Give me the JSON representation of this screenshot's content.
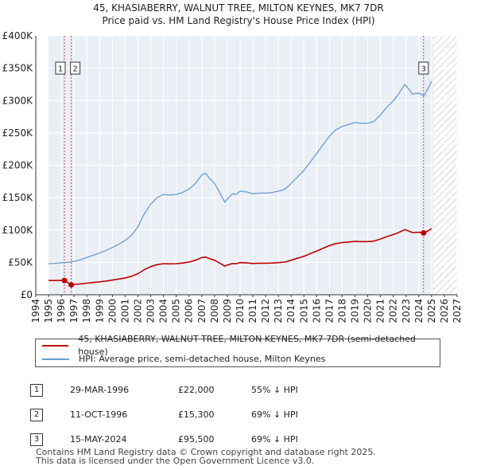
{
  "header": {
    "title_line1": "45, KHASIABERRY, WALNUT TREE, MILTON KEYNES, MK7 7DR",
    "title_line2": "Price paid vs. HM Land Registry's House Price Index (HPI)"
  },
  "legend": {
    "property_label": "45, KHASIABERRY, WALNUT TREE, MILTON KEYNES, MK7 7DR (semi-detached house)",
    "hpi_label": "HPI: Average price, semi-detached house, Milton Keynes"
  },
  "transactions": [
    {
      "num": "1",
      "date": "29-MAR-1996",
      "price": "£22,000",
      "diff": "55% ↓ HPI"
    },
    {
      "num": "2",
      "date": "11-OCT-1996",
      "price": "£15,300",
      "diff": "69% ↓ HPI"
    },
    {
      "num": "3",
      "date": "15-MAY-2024",
      "price": "£95,500",
      "diff": "69% ↓ HPI"
    }
  ],
  "footer": {
    "line1": "Contains HM Land Registry data © Crown copyright and database right 2025.",
    "line2": "This data is licensed under the Open Government Licence v3.0."
  },
  "chart_data": {
    "type": "line",
    "title": "45, KHASIABERRY, WALNUT TREE, MILTON KEYNES, MK7 7DR",
    "subtitle": "Price paid vs. HM Land Registry's House Price Index (HPI)",
    "xlabel": "",
    "ylabel": "",
    "xlim": [
      1994,
      2027
    ],
    "ylim": [
      0,
      400000
    ],
    "x_ticks": [
      1994,
      1995,
      1996,
      1997,
      1998,
      1999,
      2000,
      2001,
      2002,
      2003,
      2004,
      2005,
      2006,
      2007,
      2008,
      2009,
      2010,
      2011,
      2012,
      2013,
      2014,
      2015,
      2016,
      2017,
      2018,
      2019,
      2020,
      2021,
      2022,
      2023,
      2024,
      2025,
      2026,
      2027
    ],
    "y_ticks": [
      {
        "value": 0,
        "label": "£0"
      },
      {
        "value": 50000,
        "label": "£50K"
      },
      {
        "value": 100000,
        "label": "£100K"
      },
      {
        "value": 150000,
        "label": "£150K"
      },
      {
        "value": 200000,
        "label": "£200K"
      },
      {
        "value": 250000,
        "label": "£250K"
      },
      {
        "value": 300000,
        "label": "£300K"
      },
      {
        "value": 350000,
        "label": "£350K"
      },
      {
        "value": 400000,
        "label": "£400K"
      }
    ],
    "data_range": [
      1995.0,
      2025.15
    ],
    "shaded_before": 1995.0,
    "hatched_after": 2025.15,
    "series": [
      {
        "name": "HPI: Average price, semi-detached house, Milton Keynes",
        "color": "#6a9bd1",
        "x": [
          1995.0,
          1995.5,
          1996.0,
          1996.5,
          1997.0,
          1997.5,
          1998.0,
          1998.5,
          1999.0,
          1999.5,
          2000.0,
          2000.5,
          2001.0,
          2001.5,
          2002.0,
          2002.5,
          2003.0,
          2003.5,
          2004.0,
          2004.5,
          2005.0,
          2005.5,
          2006.0,
          2006.5,
          2007.0,
          2007.3,
          2007.6,
          2008.0,
          2008.4,
          2008.8,
          2009.1,
          2009.4,
          2009.7,
          2010.0,
          2010.5,
          2011.0,
          2011.5,
          2012.0,
          2012.5,
          2013.0,
          2013.5,
          2014.0,
          2014.5,
          2015.0,
          2015.5,
          2016.0,
          2016.5,
          2017.0,
          2017.5,
          2018.0,
          2018.5,
          2019.0,
          2019.5,
          2020.0,
          2020.5,
          2021.0,
          2021.5,
          2022.0,
          2022.3,
          2022.6,
          2022.9,
          2023.2,
          2023.5,
          2023.8,
          2024.1,
          2024.4,
          2024.7,
          2025.0
        ],
        "values": [
          48000,
          48500,
          49500,
          50000,
          51500,
          54000,
          57500,
          61000,
          64500,
          68500,
          73000,
          78000,
          84000,
          92000,
          105000,
          125000,
          140000,
          150000,
          155000,
          154000,
          155000,
          158000,
          163000,
          172000,
          185000,
          188000,
          180000,
          172000,
          158000,
          143000,
          150000,
          156000,
          155000,
          160000,
          159000,
          156000,
          157000,
          157000,
          158000,
          160000,
          163000,
          172000,
          182000,
          192000,
          205000,
          218000,
          232000,
          245000,
          255000,
          260000,
          263000,
          266000,
          265000,
          265000,
          268000,
          278000,
          290000,
          300000,
          307000,
          316000,
          325000,
          318000,
          310000,
          311000,
          311000,
          307000,
          318000,
          330000
        ]
      },
      {
        "name": "45, KHASIABERRY, WALNUT TREE, MILTON KEYNES, MK7 7DR (semi-detached house)",
        "color": "#c00000",
        "x": [
          1995.0,
          1995.5,
          1996.24,
          1996.78,
          1997.0,
          1997.5,
          1998.0,
          1998.5,
          1999.0,
          1999.5,
          2000.0,
          2000.5,
          2001.0,
          2001.5,
          2002.0,
          2002.5,
          2003.0,
          2003.5,
          2004.0,
          2004.5,
          2005.0,
          2005.5,
          2006.0,
          2006.5,
          2007.0,
          2007.3,
          2007.6,
          2008.0,
          2008.4,
          2008.8,
          2009.1,
          2009.4,
          2009.7,
          2010.0,
          2010.5,
          2011.0,
          2011.5,
          2012.0,
          2012.5,
          2013.0,
          2013.5,
          2014.0,
          2014.5,
          2015.0,
          2015.5,
          2016.0,
          2016.5,
          2017.0,
          2017.5,
          2018.0,
          2018.5,
          2019.0,
          2019.5,
          2020.0,
          2020.5,
          2021.0,
          2021.5,
          2022.0,
          2022.3,
          2022.6,
          2022.9,
          2023.2,
          2023.5,
          2023.8,
          2024.1,
          2024.37,
          2024.7,
          2025.0
        ],
        "values": [
          22000,
          22000,
          22000,
          15300,
          16000,
          16800,
          17800,
          18900,
          20000,
          21200,
          22600,
          24200,
          26000,
          28500,
          32600,
          38800,
          43400,
          46500,
          48000,
          47700,
          48000,
          49000,
          50500,
          53300,
          57300,
          58300,
          55800,
          53300,
          49000,
          44300,
          46500,
          48300,
          48000,
          49600,
          49300,
          48300,
          48700,
          48700,
          49000,
          49600,
          50500,
          53300,
          56400,
          59500,
          63500,
          67600,
          71900,
          75900,
          79000,
          80600,
          81500,
          82400,
          82100,
          82100,
          83000,
          86100,
          89900,
          93000,
          95100,
          97900,
          100700,
          98500,
          96000,
          96400,
          96400,
          95500,
          98500,
          102300
        ]
      }
    ],
    "transactions": [
      {
        "label": "1",
        "x": 1996.24,
        "value": 22000
      },
      {
        "label": "2",
        "x": 1996.78,
        "value": 15300
      },
      {
        "label": "3",
        "x": 2024.37,
        "value": 95500
      }
    ]
  }
}
